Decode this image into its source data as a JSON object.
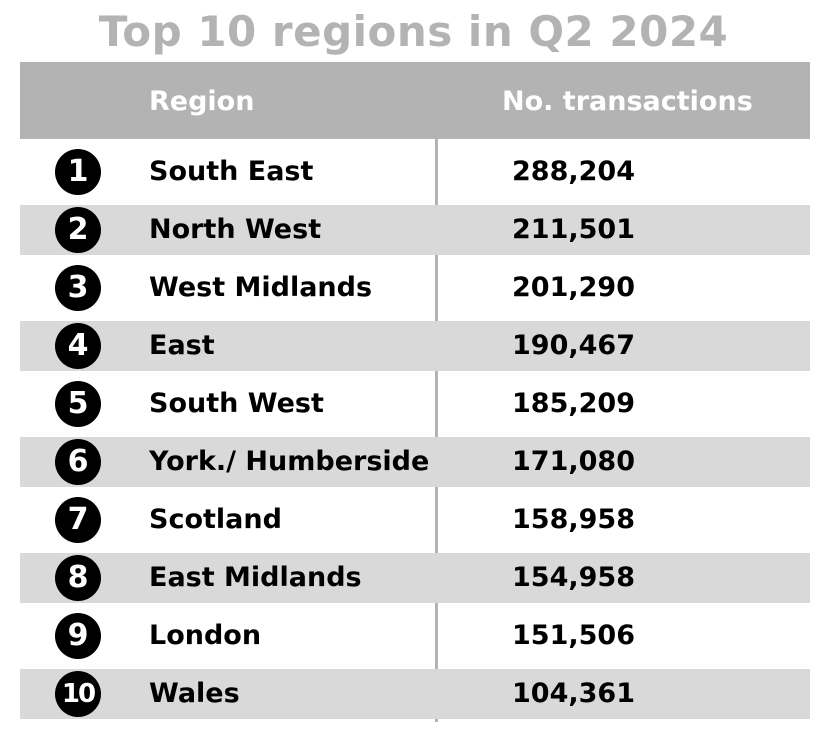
{
  "title": "Top 10 regions in Q2 2024",
  "colors": {
    "title": "#b3b3b3",
    "header_bg": "#b3b3b3",
    "header_text": "#ffffff",
    "row_shade": "#d9d9d9",
    "rank_badge": "#000000"
  },
  "chart_data": {
    "type": "table",
    "title": "Top 10 regions in Q2 2024",
    "columns": [
      "Region",
      "No. transactions"
    ],
    "rows": [
      {
        "rank": "1",
        "region": "South East",
        "transactions": "288,204",
        "value": 288204
      },
      {
        "rank": "2",
        "region": "North West",
        "transactions": "211,501",
        "value": 211501
      },
      {
        "rank": "3",
        "region": "West Midlands",
        "transactions": "201,290",
        "value": 201290
      },
      {
        "rank": "4",
        "region": "East",
        "transactions": "190,467",
        "value": 190467
      },
      {
        "rank": "5",
        "region": "South West",
        "transactions": "185,209",
        "value": 185209
      },
      {
        "rank": "6",
        "region": "York./ Humberside",
        "transactions": "171,080",
        "value": 171080
      },
      {
        "rank": "7",
        "region": "Scotland",
        "transactions": "158,958",
        "value": 158958
      },
      {
        "rank": "8",
        "region": "East Midlands",
        "transactions": "154,958",
        "value": 154958
      },
      {
        "rank": "9",
        "region": "London",
        "transactions": "151,506",
        "value": 151506
      },
      {
        "rank": "10",
        "region": "Wales",
        "transactions": "104,361",
        "value": 104361
      }
    ]
  }
}
